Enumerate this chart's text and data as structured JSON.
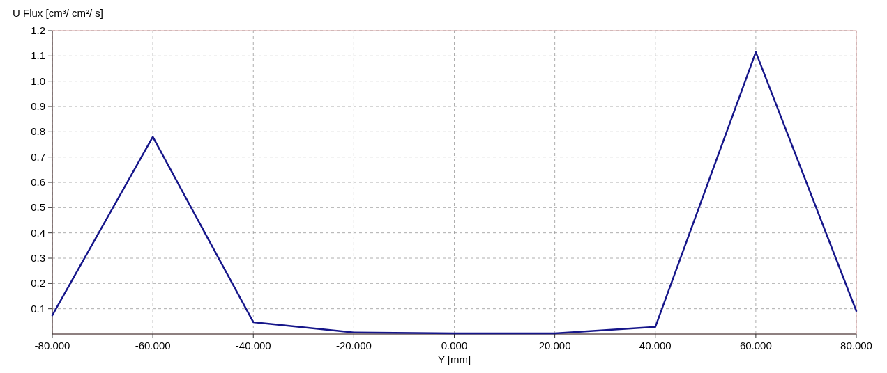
{
  "chart_data": {
    "type": "line",
    "ylabel": "U Flux [cm³/ cm²/ s]",
    "xlabel": "Y [mm]",
    "x": [
      -80,
      -60,
      -40,
      -20,
      0,
      20,
      40,
      60,
      80
    ],
    "series": [
      {
        "color": "#16168a",
        "values": [
          0.074,
          0.78,
          0.047,
          0.006,
          0.003,
          0.003,
          0.028,
          1.115,
          0.091
        ]
      }
    ],
    "xlim": [
      -80,
      80
    ],
    "xticks": [
      {
        "value": -80,
        "label": "-80.000"
      },
      {
        "value": -60,
        "label": "-60.000"
      },
      {
        "value": -40,
        "label": "-40.000"
      },
      {
        "value": -20,
        "label": "-20.000"
      },
      {
        "value": 0,
        "label": "0.000"
      },
      {
        "value": 20,
        "label": "20.000"
      },
      {
        "value": 40,
        "label": "40.000"
      },
      {
        "value": 60,
        "label": "60.000"
      },
      {
        "value": 80,
        "label": "80.000"
      }
    ],
    "ylim": [
      0,
      1.2
    ],
    "yticks": [
      0.1,
      0.2,
      0.3,
      0.4,
      0.5,
      0.6,
      0.7,
      0.8,
      0.9,
      {
        "value": 1,
        "label": "1.0"
      },
      1.1,
      1.2
    ],
    "grid": true,
    "marker": "none",
    "line_style": "solid"
  }
}
